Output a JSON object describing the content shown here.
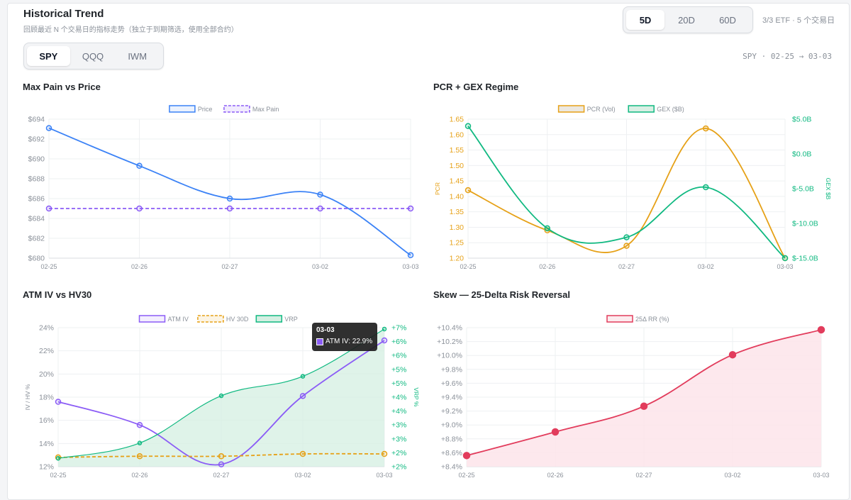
{
  "header": {
    "title": "Historical Trend",
    "subtitle": "回顾最近 N 个交易日的指标走势（独立于到期筛选，使用全部合约）",
    "ranges": [
      "5D",
      "20D",
      "60D"
    ],
    "active_range": "5D",
    "status": "3/3 ETF · 5 个交易日"
  },
  "tickers": {
    "items": [
      "SPY",
      "QQQ",
      "IWM"
    ],
    "active": "SPY",
    "range_label": "SPY · 02-25 → 03-03"
  },
  "colors": {
    "blue": "#3b82f6",
    "purple": "#8b5cf6",
    "orange": "#e6a117",
    "green": "#10b981",
    "green_fill": "#d4efe2",
    "red": "#e23c5c",
    "red_fill": "#fde4ea"
  },
  "tooltip": {
    "title": "03-03",
    "text": "ATM IV: 22.9%"
  },
  "chart_data": [
    {
      "id": "maxpain",
      "type": "line",
      "title": "Max Pain vs Price",
      "x": [
        "02-25",
        "02-26",
        "02-27",
        "03-02",
        "03-03"
      ],
      "series": [
        {
          "name": "Price",
          "values": [
            693.1,
            689.3,
            686.0,
            686.4,
            680.3
          ],
          "color": "#3b82f6",
          "dashed": false
        },
        {
          "name": "Max Pain",
          "values": [
            685,
            685,
            685,
            685,
            685
          ],
          "color": "#8b5cf6",
          "dashed": true
        }
      ],
      "ylim": [
        680,
        694
      ],
      "yticks": [
        {
          "v": 694,
          "label": "$694"
        },
        {
          "v": 692,
          "label": "$692"
        },
        {
          "v": 690,
          "label": "$690"
        },
        {
          "v": 688,
          "label": "$688"
        },
        {
          "v": 686,
          "label": "$686"
        },
        {
          "v": 684,
          "label": "$684"
        },
        {
          "v": 682,
          "label": "$682"
        },
        {
          "v": 680,
          "label": "$680"
        }
      ],
      "grid": true,
      "legend": "top-center"
    },
    {
      "id": "pcr",
      "type": "line",
      "title": "PCR + GEX Regime",
      "x": [
        "02-25",
        "02-26",
        "02-27",
        "03-02",
        "03-03"
      ],
      "series": [
        {
          "name": "PCR (Vol)",
          "values": [
            1.42,
            1.29,
            1.24,
            1.62,
            1.2
          ],
          "axis": "left",
          "color": "#e6a117"
        },
        {
          "name": "GEX ($B)",
          "values": [
            4.0,
            -10.7,
            -12.0,
            -4.8,
            -15.0
          ],
          "axis": "right",
          "color": "#10b981"
        }
      ],
      "ylabel": "PCR",
      "y2label": "GEX $B",
      "ylim": [
        1.2,
        1.65
      ],
      "y2lim": [
        -15,
        5
      ],
      "yticks": [
        {
          "v": 1.65,
          "label": "1.65"
        },
        {
          "v": 1.6,
          "label": "1.60"
        },
        {
          "v": 1.55,
          "label": "1.55"
        },
        {
          "v": 1.5,
          "label": "1.50"
        },
        {
          "v": 1.45,
          "label": "1.45"
        },
        {
          "v": 1.4,
          "label": "1.40"
        },
        {
          "v": 1.35,
          "label": "1.35"
        },
        {
          "v": 1.3,
          "label": "1.30"
        },
        {
          "v": 1.25,
          "label": "1.25"
        },
        {
          "v": 1.2,
          "label": "1.20"
        }
      ],
      "y2ticks": [
        {
          "v": 5,
          "label": "$5.0B"
        },
        {
          "v": 0,
          "label": "$0.0B"
        },
        {
          "v": -5,
          "label": "$-5.0B"
        },
        {
          "v": -10,
          "label": "$-10.0B"
        },
        {
          "v": -15,
          "label": "$-15.0B"
        }
      ],
      "grid": true,
      "legend": "top-center"
    },
    {
      "id": "atmiv",
      "type": "line",
      "title": "ATM IV vs HV30",
      "x": [
        "02-25",
        "02-26",
        "02-27",
        "03-02",
        "03-03"
      ],
      "series": [
        {
          "name": "ATM IV",
          "values": [
            17.6,
            15.6,
            12.2,
            18.1,
            22.9
          ],
          "axis": "left",
          "color": "#8b5cf6"
        },
        {
          "name": "HV 30D",
          "values": [
            12.8,
            12.9,
            12.9,
            13.1,
            13.1
          ],
          "axis": "left",
          "color": "#e6a117",
          "dashed": true
        },
        {
          "name": "VRP",
          "values": [
            1.8,
            2.35,
            4.05,
            4.75,
            6.45
          ],
          "axis": "right",
          "color": "#10b981",
          "area": true
        }
      ],
      "ylabel": "IV / HV %",
      "y2label": "VRP %",
      "ylim": [
        12,
        24
      ],
      "y2lim": [
        1.5,
        6.5
      ],
      "yticks": [
        {
          "v": 24,
          "label": "24%"
        },
        {
          "v": 22,
          "label": "22%"
        },
        {
          "v": 20,
          "label": "20%"
        },
        {
          "v": 18,
          "label": "18%"
        },
        {
          "v": 16,
          "label": "16%"
        },
        {
          "v": 14,
          "label": "14%"
        },
        {
          "v": 12,
          "label": "12%"
        }
      ],
      "y2ticks": [
        {
          "v": 6.5,
          "label": "+7%"
        },
        {
          "v": 6.0,
          "label": "+6%"
        },
        {
          "v": 5.5,
          "label": "+6%"
        },
        {
          "v": 5.0,
          "label": "+5%"
        },
        {
          "v": 4.5,
          "label": "+5%"
        },
        {
          "v": 4.0,
          "label": "+4%"
        },
        {
          "v": 3.5,
          "label": "+4%"
        },
        {
          "v": 3.0,
          "label": "+3%"
        },
        {
          "v": 2.5,
          "label": "+3%"
        },
        {
          "v": 2.0,
          "label": "+2%"
        },
        {
          "v": 1.5,
          "label": "+2%"
        }
      ],
      "grid": true,
      "legend": "top-center"
    },
    {
      "id": "skew",
      "type": "area",
      "title": "Skew — 25-Delta Risk Reversal",
      "x": [
        "02-25",
        "02-26",
        "02-27",
        "03-02",
        "03-03"
      ],
      "series": [
        {
          "name": "25Δ RR (%)",
          "values": [
            8.56,
            8.9,
            9.27,
            10.01,
            10.37
          ],
          "color": "#e23c5c"
        }
      ],
      "ylim": [
        8.4,
        10.4
      ],
      "yticks": [
        {
          "v": 10.4,
          "label": "+10.4%"
        },
        {
          "v": 10.2,
          "label": "+10.2%"
        },
        {
          "v": 10.0,
          "label": "+10.0%"
        },
        {
          "v": 9.8,
          "label": "+9.8%"
        },
        {
          "v": 9.6,
          "label": "+9.6%"
        },
        {
          "v": 9.4,
          "label": "+9.4%"
        },
        {
          "v": 9.2,
          "label": "+9.2%"
        },
        {
          "v": 9.0,
          "label": "+9.0%"
        },
        {
          "v": 8.8,
          "label": "+8.8%"
        },
        {
          "v": 8.6,
          "label": "+8.6%"
        },
        {
          "v": 8.4,
          "label": "+8.4%"
        }
      ],
      "grid": true,
      "legend": "top-center"
    }
  ]
}
